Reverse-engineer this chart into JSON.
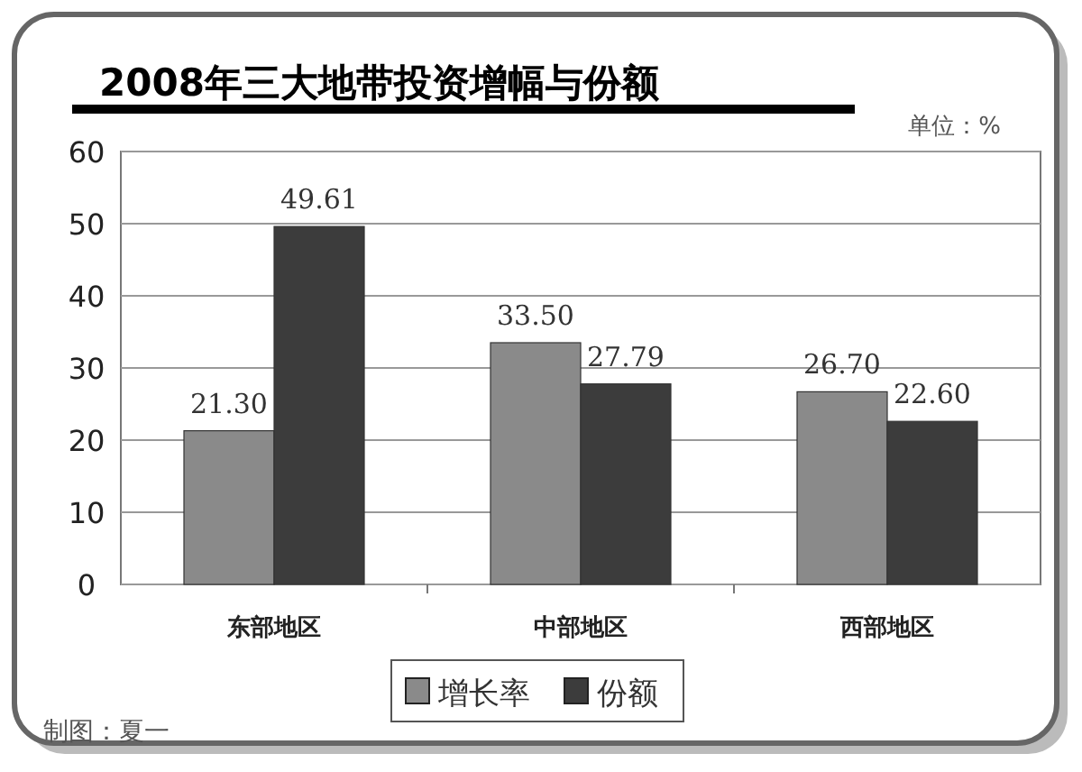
{
  "chart_data": {
    "type": "bar",
    "title": "2008年三大地带投资增幅与份额",
    "subtitle": "单位：%",
    "annotations": [
      "制图：夏一"
    ],
    "categories": [
      "东部地区",
      "中部地区",
      "西部地区"
    ],
    "series": [
      {
        "name": "增长率",
        "color": "#8a8a8a",
        "values": [
          21.3,
          33.5,
          26.7
        ],
        "value_labels": [
          "21.30",
          "33.50",
          "26.70"
        ]
      },
      {
        "name": "份额",
        "color": "#3c3c3c",
        "values": [
          49.61,
          27.79,
          22.6
        ],
        "value_labels": [
          "49.61",
          "27.79",
          "22.60"
        ]
      }
    ],
    "ylim": [
      0,
      60
    ],
    "yticks": [
      0,
      10,
      20,
      30,
      40,
      50,
      60
    ],
    "grid": "y",
    "legend": "bottom"
  }
}
